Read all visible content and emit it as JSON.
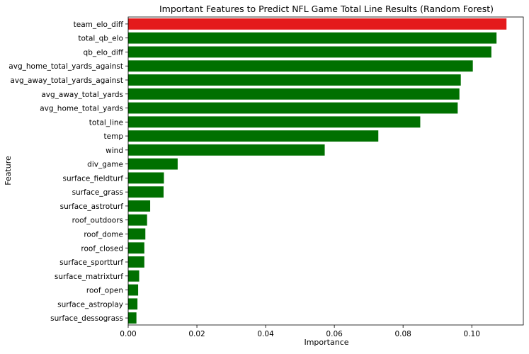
{
  "chart_data": {
    "type": "bar",
    "orientation": "horizontal",
    "title": "Important Features to Predict NFL Game Total Line Results (Random Forest)",
    "xlabel": "Importance",
    "ylabel": "Feature",
    "xlim": [
      0,
      0.115
    ],
    "xticks": [
      0.0,
      0.02,
      0.04,
      0.06,
      0.08,
      0.1
    ],
    "xtick_labels": [
      "0.00",
      "0.02",
      "0.04",
      "0.06",
      "0.08",
      "0.10"
    ],
    "grid": false,
    "highlight_color": "#e41a1c",
    "default_color": "#007000",
    "categories": [
      "team_elo_diff",
      "total_qb_elo",
      "qb_elo_diff",
      "avg_home_total_yards_against",
      "avg_away_total_yards_against",
      "avg_away_total_yards",
      "avg_home_total_yards",
      "total_line",
      "temp",
      "wind",
      "div_game",
      "surface_fieldturf",
      "surface_grass",
      "surface_astroturf",
      "roof_outdoors",
      "roof_dome",
      "roof_closed",
      "surface_sportturf",
      "surface_matrixturf",
      "roof_open",
      "surface_astroplay",
      "surface_dessograss"
    ],
    "values": [
      0.1101,
      0.1072,
      0.1057,
      0.1003,
      0.0968,
      0.0964,
      0.0959,
      0.085,
      0.0728,
      0.0572,
      0.0144,
      0.0104,
      0.0103,
      0.0064,
      0.0055,
      0.005,
      0.0047,
      0.0047,
      0.0032,
      0.0029,
      0.0027,
      0.0024
    ],
    "highlight_index": 0
  }
}
